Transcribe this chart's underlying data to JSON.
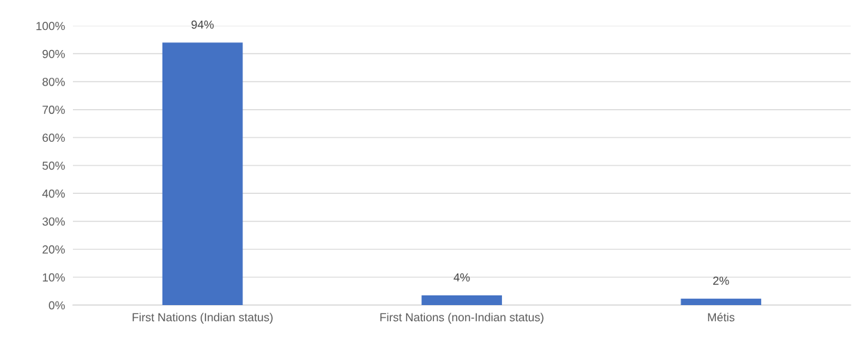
{
  "chart_data": {
    "type": "bar",
    "categories": [
      "First Nations (Indian status)",
      "First Nations (non-Indian status)",
      "Métis"
    ],
    "values": [
      94,
      3.5,
      2.3
    ],
    "value_labels": [
      "94%",
      "4%",
      "2%"
    ],
    "color": "#4472c4",
    "ylim": [
      0,
      100
    ],
    "yticks": [
      {
        "value": 0,
        "label": "0%"
      },
      {
        "value": 10,
        "label": "10%"
      },
      {
        "value": 20,
        "label": "20%"
      },
      {
        "value": 30,
        "label": "30%"
      },
      {
        "value": 40,
        "label": "40%"
      },
      {
        "value": 50,
        "label": "50%"
      },
      {
        "value": 60,
        "label": "60%"
      },
      {
        "value": 70,
        "label": "70%"
      },
      {
        "value": 80,
        "label": "80%"
      },
      {
        "value": 90,
        "label": "90%"
      },
      {
        "value": 100,
        "label": "100%"
      }
    ],
    "grid": "y"
  }
}
